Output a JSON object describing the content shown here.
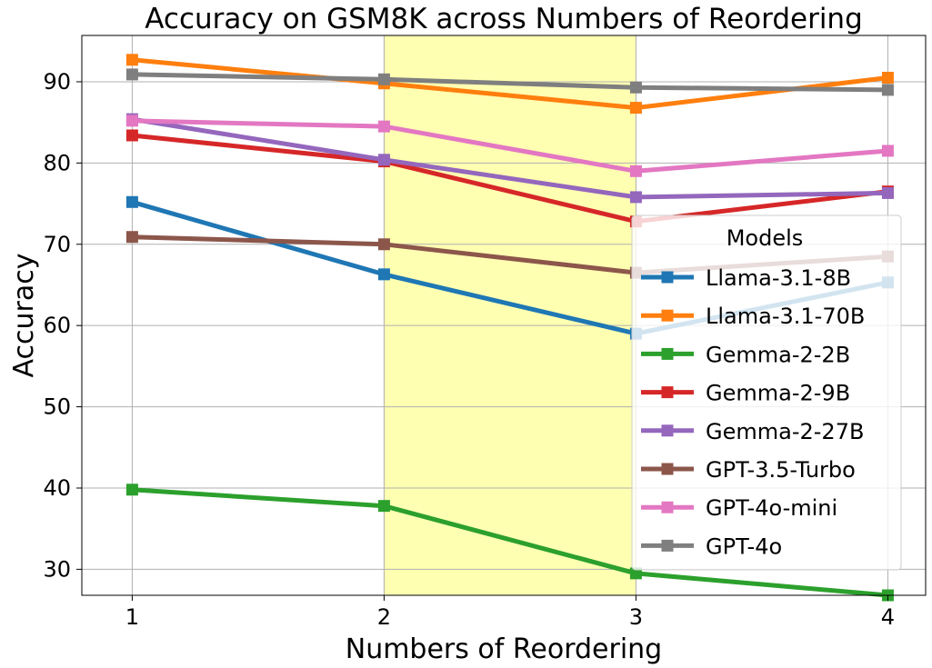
{
  "chart_data": {
    "type": "line",
    "title": "Accuracy on GSM8K across Numbers of Reordering",
    "xlabel": "Numbers of Reordering",
    "ylabel": "Accuracy",
    "x": [
      1,
      2,
      3,
      4
    ],
    "xlim": [
      0.8,
      4.15
    ],
    "ylim": [
      26.8,
      95.7
    ],
    "yticks": [
      30,
      40,
      50,
      60,
      70,
      80,
      90
    ],
    "grid": true,
    "highlight": {
      "x_range": [
        2,
        3
      ],
      "color": "#ffffb2"
    },
    "legend": {
      "title": "Models",
      "placement": "right"
    },
    "series": [
      {
        "name": "Llama-3.1-8B",
        "color": "#1f77b4",
        "values": [
          75.2,
          66.3,
          59.0,
          65.3
        ]
      },
      {
        "name": "Llama-3.1-70B",
        "color": "#ff7f0e",
        "values": [
          92.7,
          89.8,
          86.8,
          90.5
        ]
      },
      {
        "name": "Gemma-2-2B",
        "color": "#2ca02c",
        "values": [
          39.8,
          37.8,
          29.5,
          26.8
        ]
      },
      {
        "name": "Gemma-2-9B",
        "color": "#d62728",
        "values": [
          83.4,
          80.2,
          72.8,
          76.5
        ]
      },
      {
        "name": "Gemma-2-27B",
        "color": "#9467bd",
        "values": [
          85.4,
          80.4,
          75.8,
          76.3
        ]
      },
      {
        "name": "GPT-3.5-Turbo",
        "color": "#8c564b",
        "values": [
          70.9,
          70.0,
          66.5,
          68.5
        ]
      },
      {
        "name": "GPT-4o-mini",
        "color": "#e377c2",
        "values": [
          85.2,
          84.5,
          79.0,
          81.5
        ]
      },
      {
        "name": "GPT-4o",
        "color": "#7f7f7f",
        "values": [
          90.9,
          90.3,
          89.3,
          89.0
        ]
      }
    ]
  }
}
